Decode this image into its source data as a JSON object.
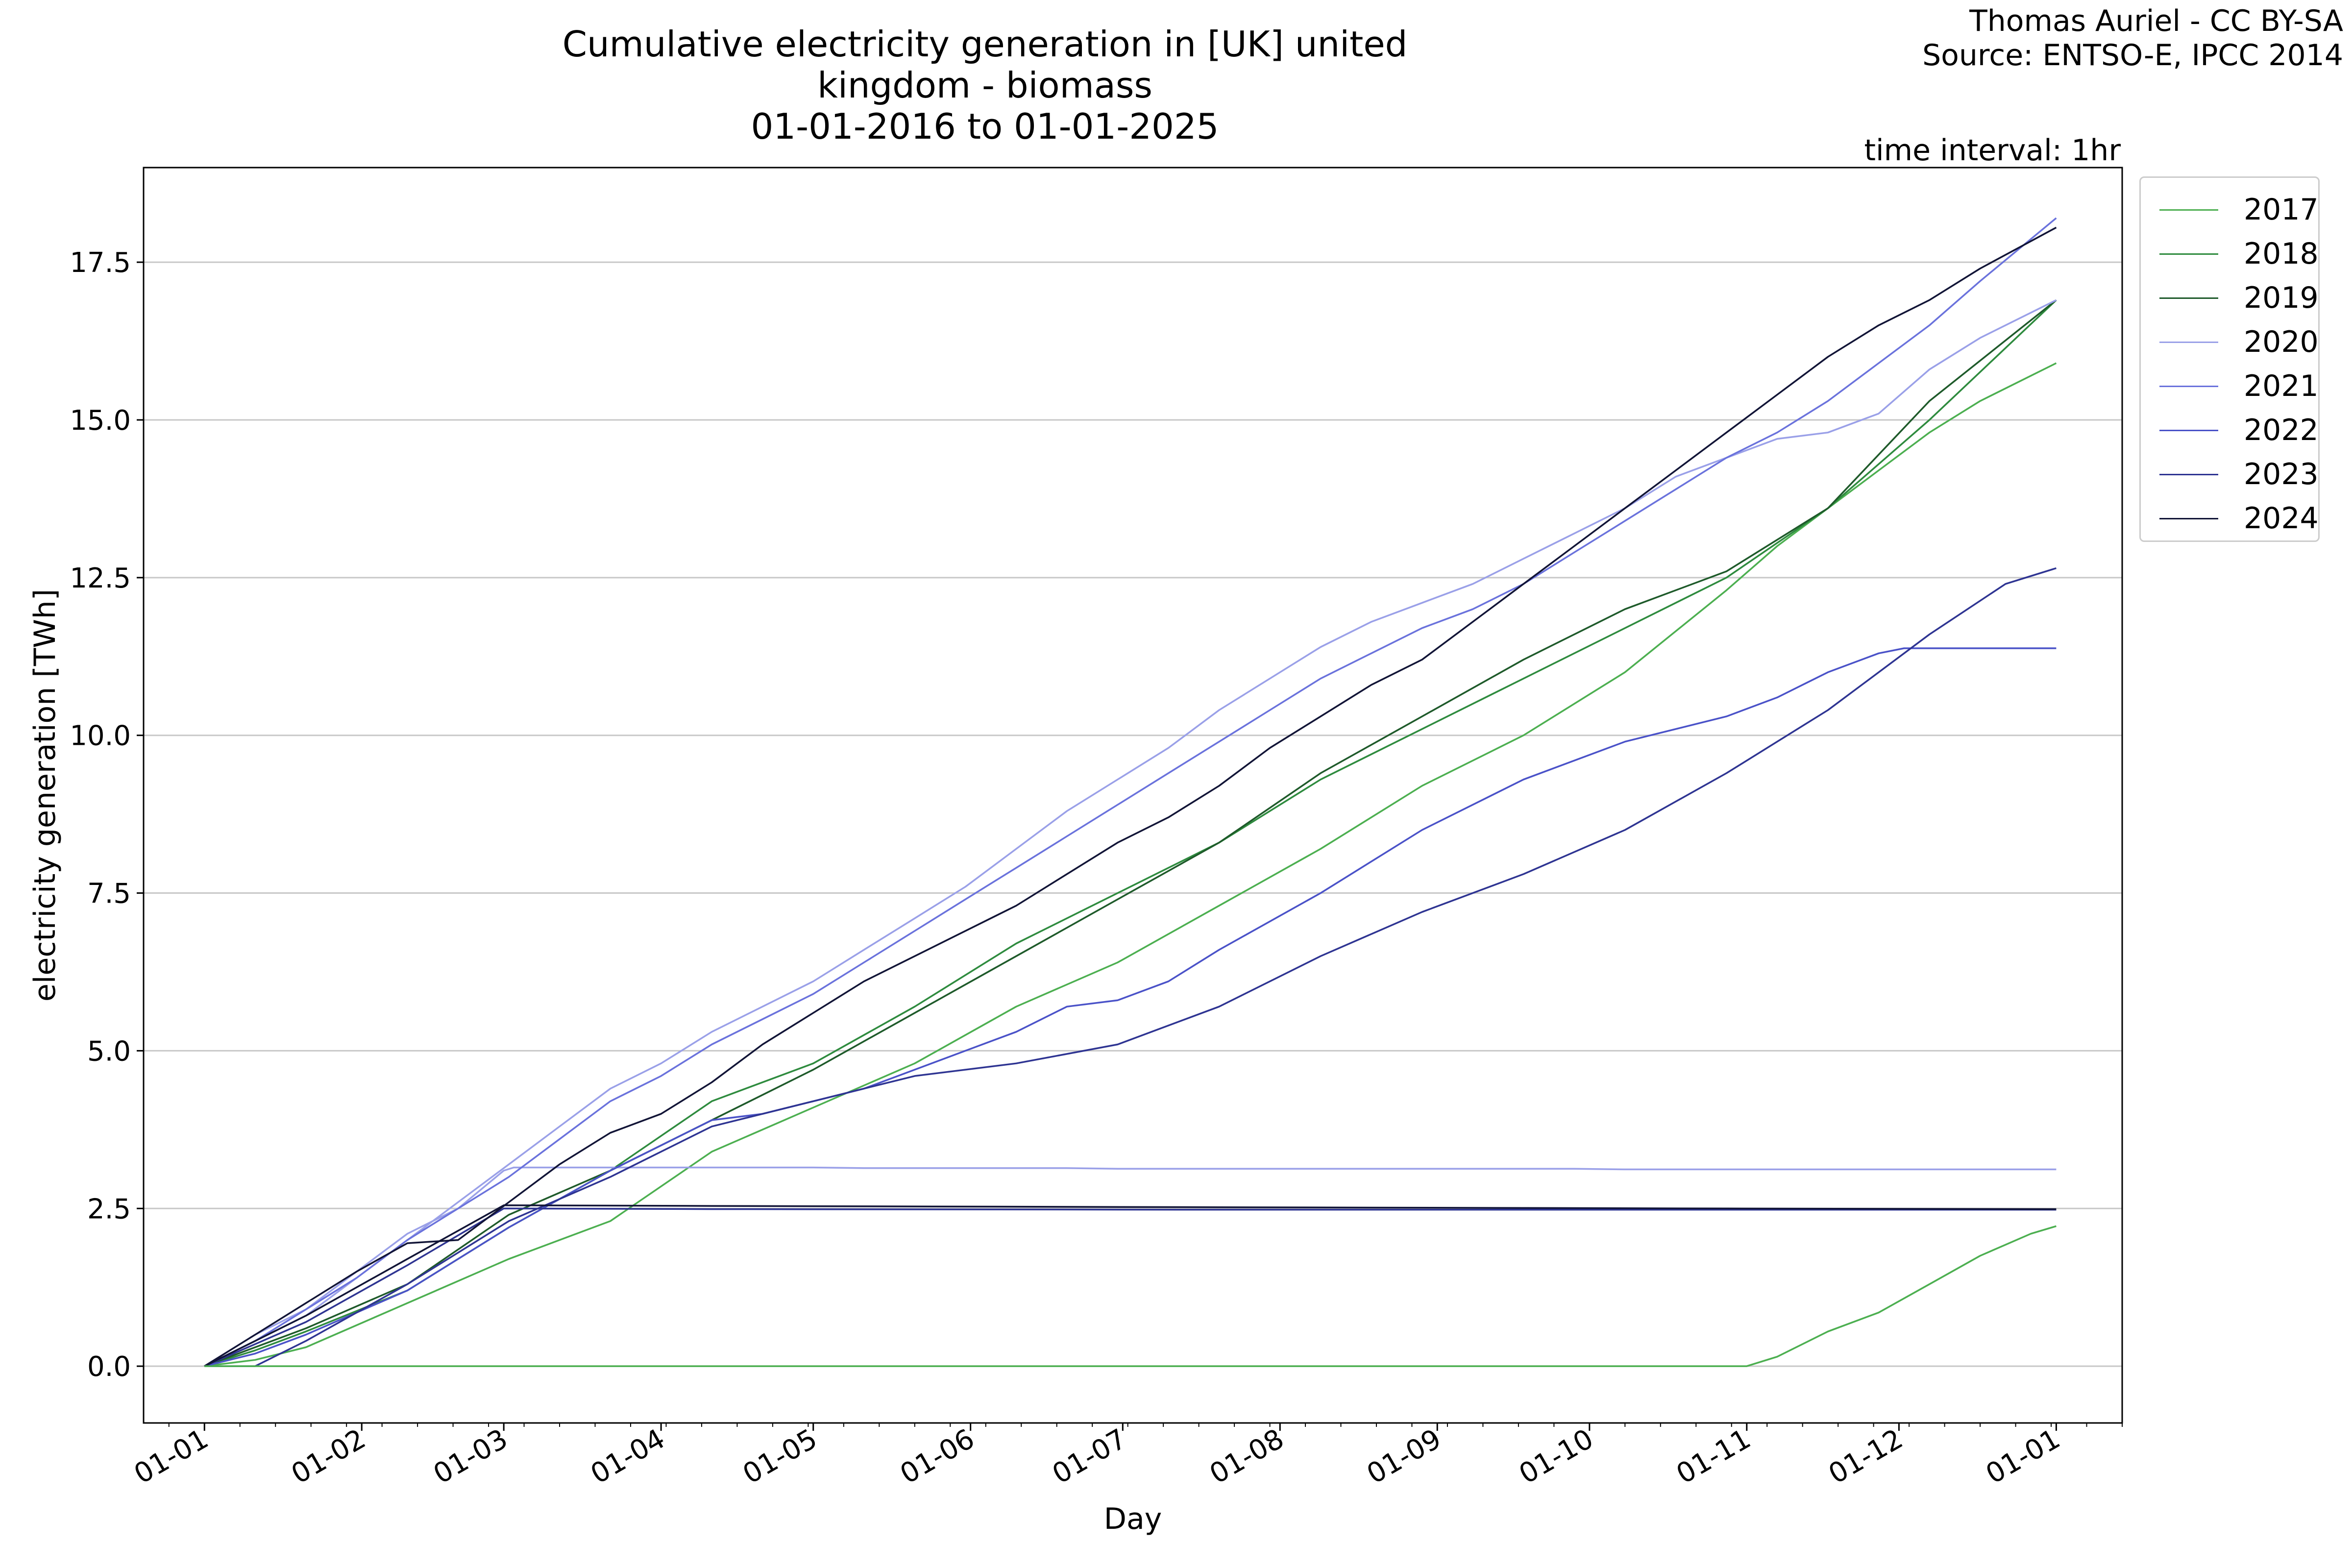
{
  "header": {
    "title_line1": "Cumulative electricity generation in [UK] united kingdom - biomass",
    "title_line2": "01-01-2016 to 01-01-2025",
    "credit_line1": "Thomas Auriel - CC BY-SA",
    "credit_line2": "Source: ENTSO-E, IPCC 2014",
    "interval": "time interval: 1hr"
  },
  "chart_data": {
    "type": "line",
    "title": "Cumulative electricity generation in [UK] united kingdom - biomass",
    "subtitle": "01-01-2016 to 01-01-2025",
    "xlabel": "Day",
    "ylabel": "electricity generation [TWh]",
    "xlim": [
      -12,
      378
    ],
    "ylim": [
      -0.9,
      19.0
    ],
    "x_unit": "day of year",
    "x_ticks": [
      {
        "x": 0,
        "label": "01-01"
      },
      {
        "x": 31,
        "label": "01-02"
      },
      {
        "x": 59,
        "label": "01-03"
      },
      {
        "x": 90,
        "label": "01-04"
      },
      {
        "x": 120,
        "label": "01-05"
      },
      {
        "x": 151,
        "label": "01-06"
      },
      {
        "x": 181,
        "label": "01-07"
      },
      {
        "x": 212,
        "label": "01-08"
      },
      {
        "x": 243,
        "label": "01-09"
      },
      {
        "x": 273,
        "label": "01-10"
      },
      {
        "x": 304,
        "label": "01-11"
      },
      {
        "x": 334,
        "label": "01-12"
      },
      {
        "x": 365,
        "label": "01-01"
      }
    ],
    "y_ticks": [
      0.0,
      2.5,
      5.0,
      7.5,
      10.0,
      12.5,
      15.0,
      17.5
    ],
    "y_tick_labels": [
      "0.0",
      "2.5",
      "5.0",
      "7.5",
      "10.0",
      "12.5",
      "15.0",
      "17.5"
    ],
    "grid": "horizontal",
    "legend": "outside-top-right",
    "series": [
      {
        "name": "2017",
        "color": "#4caf50",
        "x": [
          0,
          10,
          20,
          40,
          60,
          80,
          100,
          120,
          140,
          160,
          180,
          200,
          220,
          240,
          260,
          280,
          300,
          310,
          320,
          330,
          340,
          350,
          365
        ],
        "y": [
          0,
          0.1,
          0.3,
          1.0,
          1.7,
          2.3,
          3.4,
          4.1,
          4.8,
          5.7,
          6.4,
          7.3,
          8.2,
          9.2,
          10.0,
          11.0,
          12.3,
          13.0,
          13.6,
          14.2,
          14.8,
          15.3,
          15.9
        ]
      },
      {
        "name": "2018",
        "color": "#2e8b3e",
        "x": [
          0,
          10,
          20,
          40,
          60,
          80,
          100,
          120,
          140,
          160,
          180,
          200,
          220,
          240,
          260,
          280,
          300,
          320,
          340,
          365
        ],
        "y": [
          0,
          0.25,
          0.55,
          1.2,
          2.2,
          3.1,
          4.2,
          4.8,
          5.7,
          6.7,
          7.5,
          8.3,
          9.3,
          10.1,
          10.9,
          11.7,
          12.5,
          13.6,
          15.0,
          16.9
        ]
      },
      {
        "name": "2019",
        "color": "#1e5a2a",
        "x": [
          0,
          10,
          20,
          40,
          60,
          80,
          100,
          120,
          140,
          160,
          180,
          200,
          220,
          240,
          260,
          280,
          300,
          320,
          340,
          365
        ],
        "y": [
          0,
          0.3,
          0.6,
          1.3,
          2.4,
          3.1,
          3.9,
          4.7,
          5.6,
          6.5,
          7.4,
          8.3,
          9.4,
          10.3,
          11.2,
          12.0,
          12.6,
          13.6,
          15.3,
          16.9
        ]
      },
      {
        "name": "2020",
        "color": "#9aa0e8",
        "x": [
          0,
          10,
          20,
          30,
          40,
          50,
          59,
          61,
          70,
          80,
          90,
          100,
          110,
          120,
          130,
          140,
          150,
          160,
          170,
          180,
          190,
          200,
          210,
          220,
          230,
          240,
          250,
          260,
          270,
          280,
          290,
          300,
          310,
          320,
          330,
          340,
          350,
          360,
          365
        ],
        "y": [
          0,
          0.5,
          0.9,
          1.5,
          2.1,
          2.5,
          3.1,
          3.15,
          3.15,
          3.15,
          3.15,
          3.15,
          3.15,
          3.15,
          3.14,
          3.14,
          3.14,
          3.14,
          3.14,
          3.13,
          3.13,
          3.13,
          3.13,
          3.13,
          3.13,
          3.13,
          3.13,
          3.13,
          3.13,
          3.12,
          3.12,
          3.12,
          3.12,
          3.12,
          3.12,
          3.12,
          3.12,
          3.12,
          3.12
        ]
      },
      {
        "name": "2020",
        "color": "#9aa0e8",
        "legend": false,
        "x": [
          0,
          10,
          20,
          30,
          40,
          50,
          60,
          70,
          80,
          90,
          100,
          110,
          120,
          130,
          140,
          150,
          160,
          170,
          180,
          190,
          200,
          210,
          220,
          230,
          240,
          250,
          260,
          270,
          280,
          290,
          300,
          310,
          320,
          330,
          340,
          350,
          365
        ],
        "y": [
          0,
          0.4,
          0.8,
          1.4,
          2.0,
          2.6,
          3.2,
          3.8,
          4.4,
          4.8,
          5.3,
          5.7,
          6.1,
          6.6,
          7.1,
          7.6,
          8.2,
          8.8,
          9.3,
          9.8,
          10.4,
          10.9,
          11.4,
          11.8,
          12.1,
          12.4,
          12.8,
          13.2,
          13.6,
          14.1,
          14.4,
          14.7,
          14.8,
          15.1,
          15.8,
          16.3,
          16.9
        ]
      },
      {
        "name": "2021",
        "color": "#6a72dc",
        "x": [
          0,
          10,
          20,
          30,
          40,
          50,
          60,
          70,
          80,
          90,
          100,
          110,
          120,
          130,
          140,
          150,
          160,
          170,
          180,
          190,
          200,
          210,
          220,
          230,
          240,
          250,
          260,
          270,
          280,
          290,
          300,
          310,
          320,
          330,
          340,
          350,
          365
        ],
        "y": [
          0,
          0.4,
          0.9,
          1.4,
          2.0,
          2.5,
          3.0,
          3.6,
          4.2,
          4.6,
          5.1,
          5.5,
          5.9,
          6.4,
          6.9,
          7.4,
          7.9,
          8.4,
          8.9,
          9.4,
          9.9,
          10.4,
          10.9,
          11.3,
          11.7,
          12.0,
          12.4,
          12.9,
          13.4,
          13.9,
          14.4,
          14.8,
          15.3,
          15.9,
          16.5,
          17.2,
          18.2
        ]
      },
      {
        "name": "2022",
        "color": "#4a52c8",
        "x": [
          0,
          10,
          20,
          40,
          60,
          80,
          100,
          110,
          120,
          130,
          140,
          150,
          160,
          170,
          180,
          190,
          200,
          220,
          240,
          260,
          280,
          300,
          310,
          320,
          330,
          335,
          350,
          365
        ],
        "y": [
          0,
          0.2,
          0.5,
          1.2,
          2.2,
          3.1,
          3.9,
          4.0,
          4.2,
          4.4,
          4.7,
          5.0,
          5.3,
          5.7,
          5.8,
          6.1,
          6.6,
          7.5,
          8.5,
          9.3,
          9.9,
          10.3,
          10.6,
          11.0,
          11.3,
          11.38,
          11.38,
          11.38
        ]
      },
      {
        "name": "2023",
        "color": "#2e3492",
        "x": [
          0,
          10,
          20,
          40,
          60,
          80,
          100,
          120,
          140,
          160,
          180,
          200,
          220,
          240,
          260,
          280,
          300,
          320,
          340,
          355,
          365
        ],
        "y": [
          0,
          0,
          0.4,
          1.3,
          2.3,
          3.0,
          3.8,
          4.2,
          4.6,
          4.8,
          5.1,
          5.7,
          6.5,
          7.2,
          7.8,
          8.5,
          9.4,
          10.4,
          11.6,
          12.4,
          12.65
        ]
      },
      {
        "name": "2023",
        "color": "#2e3492",
        "legend": false,
        "x": [
          0,
          20,
          40,
          59,
          100,
          200,
          300,
          365
        ],
        "y": [
          0,
          0.7,
          1.6,
          2.5,
          2.49,
          2.48,
          2.48,
          2.48
        ]
      },
      {
        "name": "2024",
        "color": "#111436",
        "x": [
          0,
          10,
          20,
          30,
          40,
          50,
          60,
          70,
          80,
          90,
          100,
          110,
          120,
          130,
          140,
          150,
          160,
          170,
          180,
          190,
          200,
          210,
          220,
          230,
          240,
          250,
          260,
          270,
          280,
          290,
          300,
          310,
          320,
          330,
          340,
          350,
          365
        ],
        "y": [
          0,
          0.5,
          1.0,
          1.5,
          1.95,
          2.0,
          2.6,
          3.2,
          3.7,
          4.0,
          4.5,
          5.1,
          5.6,
          6.1,
          6.5,
          6.9,
          7.3,
          7.8,
          8.3,
          8.7,
          9.2,
          9.8,
          10.3,
          10.8,
          11.2,
          11.8,
          12.4,
          13.0,
          13.6,
          14.2,
          14.8,
          15.4,
          16.0,
          16.5,
          16.9,
          17.4,
          18.05
        ]
      },
      {
        "name": "2024",
        "color": "#111436",
        "legend": false,
        "x": [
          0,
          20,
          40,
          59,
          100,
          200,
          300,
          365
        ],
        "y": [
          0,
          0.8,
          1.7,
          2.55,
          2.54,
          2.52,
          2.5,
          2.49
        ]
      },
      {
        "name": "2017",
        "color": "#4caf50",
        "legend": false,
        "x": [
          0,
          300,
          304,
          310,
          320,
          330,
          340,
          350,
          360,
          365
        ],
        "y": [
          0,
          0,
          0,
          0.15,
          0.55,
          0.85,
          1.3,
          1.75,
          2.1,
          2.22
        ]
      }
    ]
  }
}
